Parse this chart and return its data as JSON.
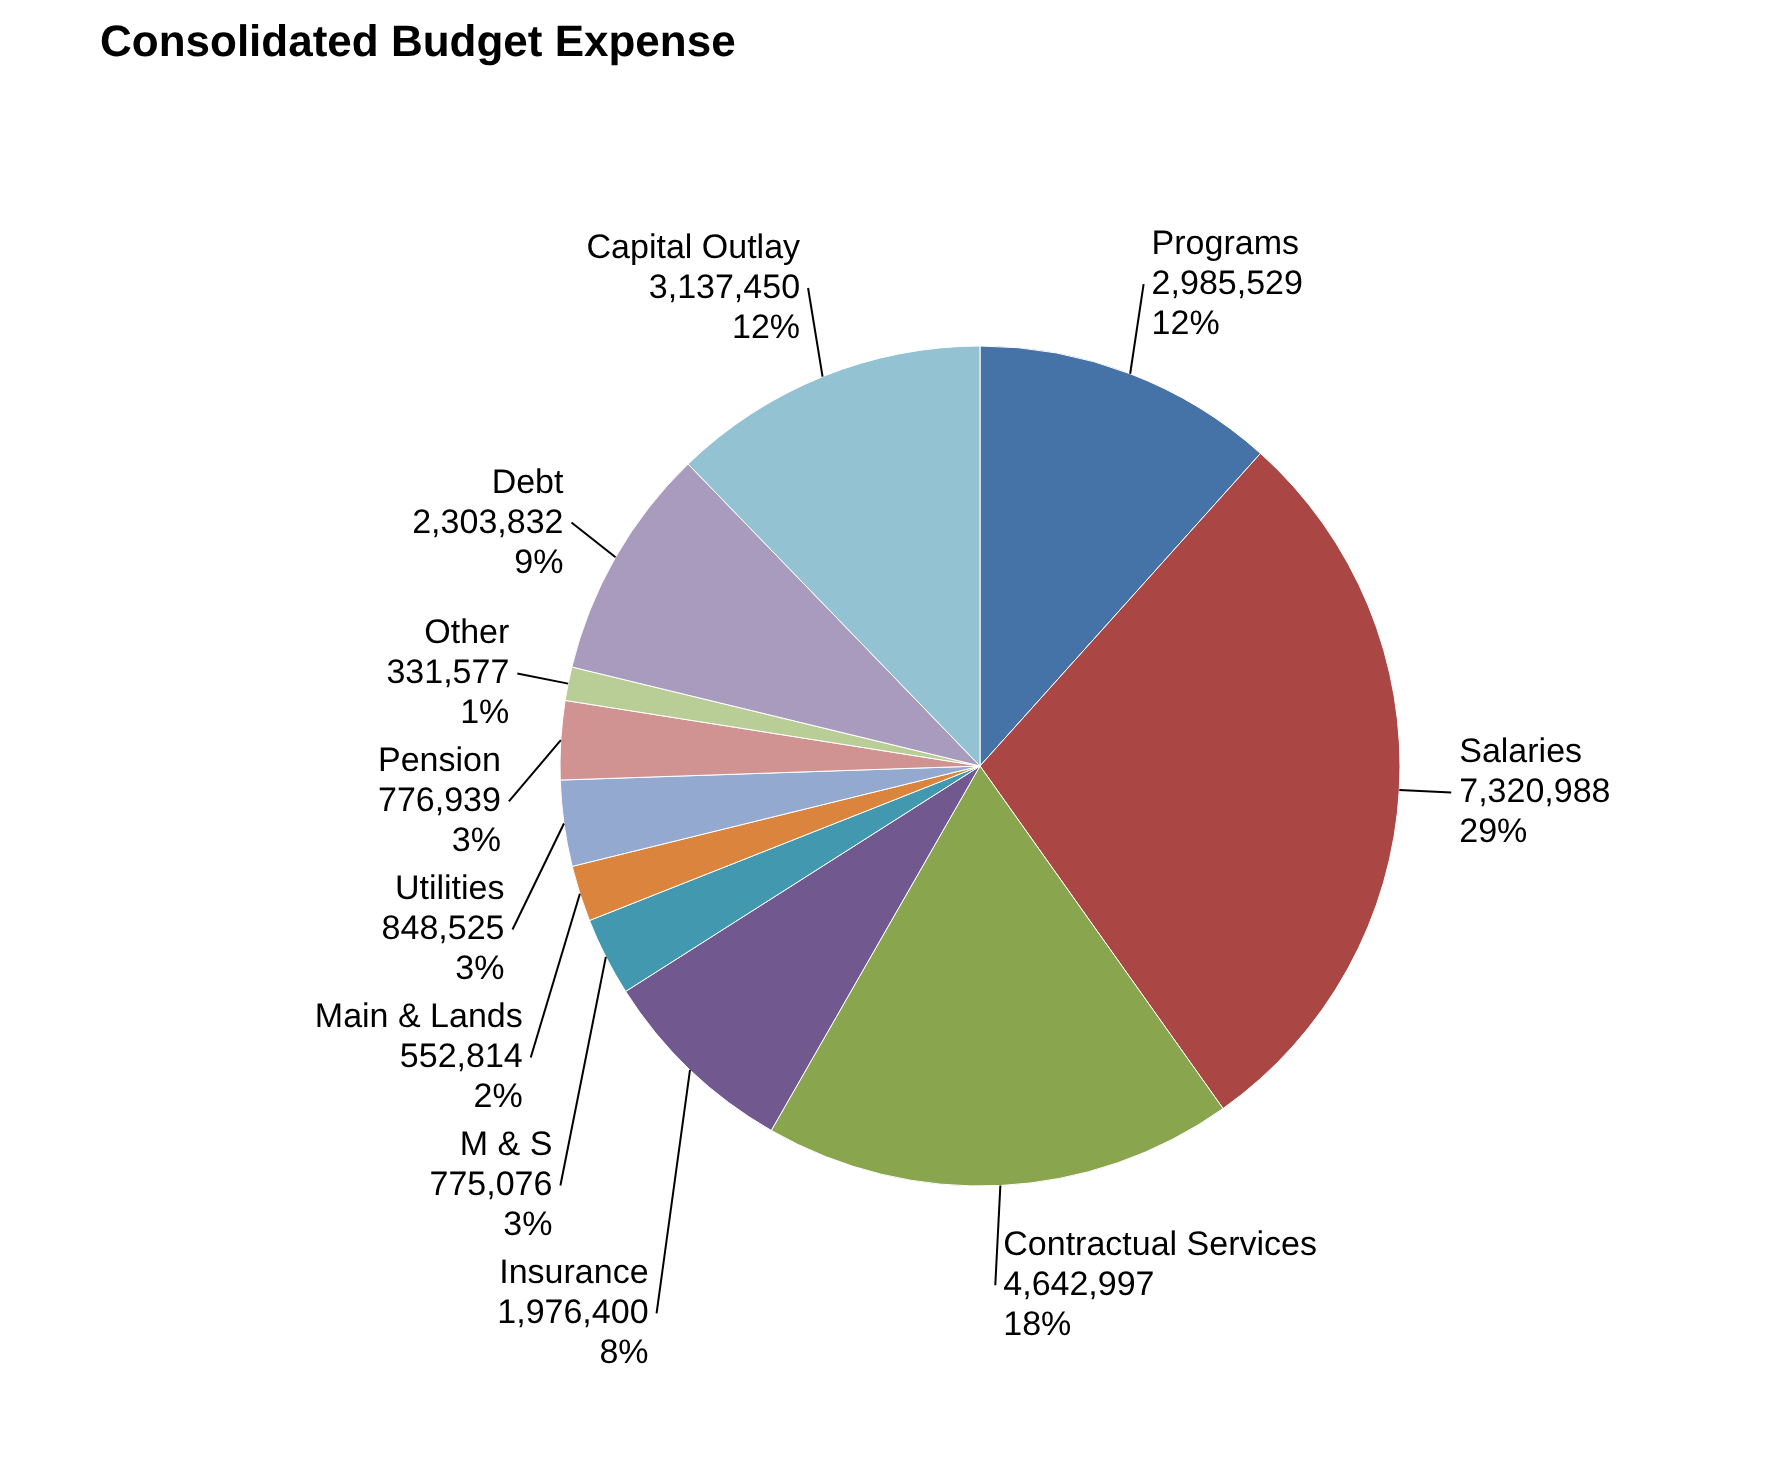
{
  "chart_data": {
    "type": "pie",
    "title": "Consolidated Budget Expense",
    "categories": [
      "Programs",
      "Salaries",
      "Contractual Services",
      "Insurance",
      "M & S",
      "Main & Lands",
      "Utilities",
      "Pension",
      "Other",
      "Debt",
      "Capital Outlay"
    ],
    "values": [
      2985529,
      7320988,
      4642997,
      1976400,
      775076,
      552814,
      848525,
      776939,
      331577,
      2303832,
      3137450
    ],
    "value_labels": [
      "2,985,529 12%",
      "7,320,988 29%",
      "4,642,997 18%",
      "1,976,400 8%",
      "775,076 3%",
      "552,814 2%",
      "848,525 3%",
      "776,939 3%",
      "331,577 1%",
      "2,303,832 9%",
      "3,137,450 12%"
    ],
    "colors": [
      "#4572a7",
      "#aa4643",
      "#89a54e",
      "#71588f",
      "#4198af",
      "#db843d",
      "#93a9cf",
      "#d19392",
      "#b9cd96",
      "#a99bbd",
      "#93c3d2"
    ]
  }
}
